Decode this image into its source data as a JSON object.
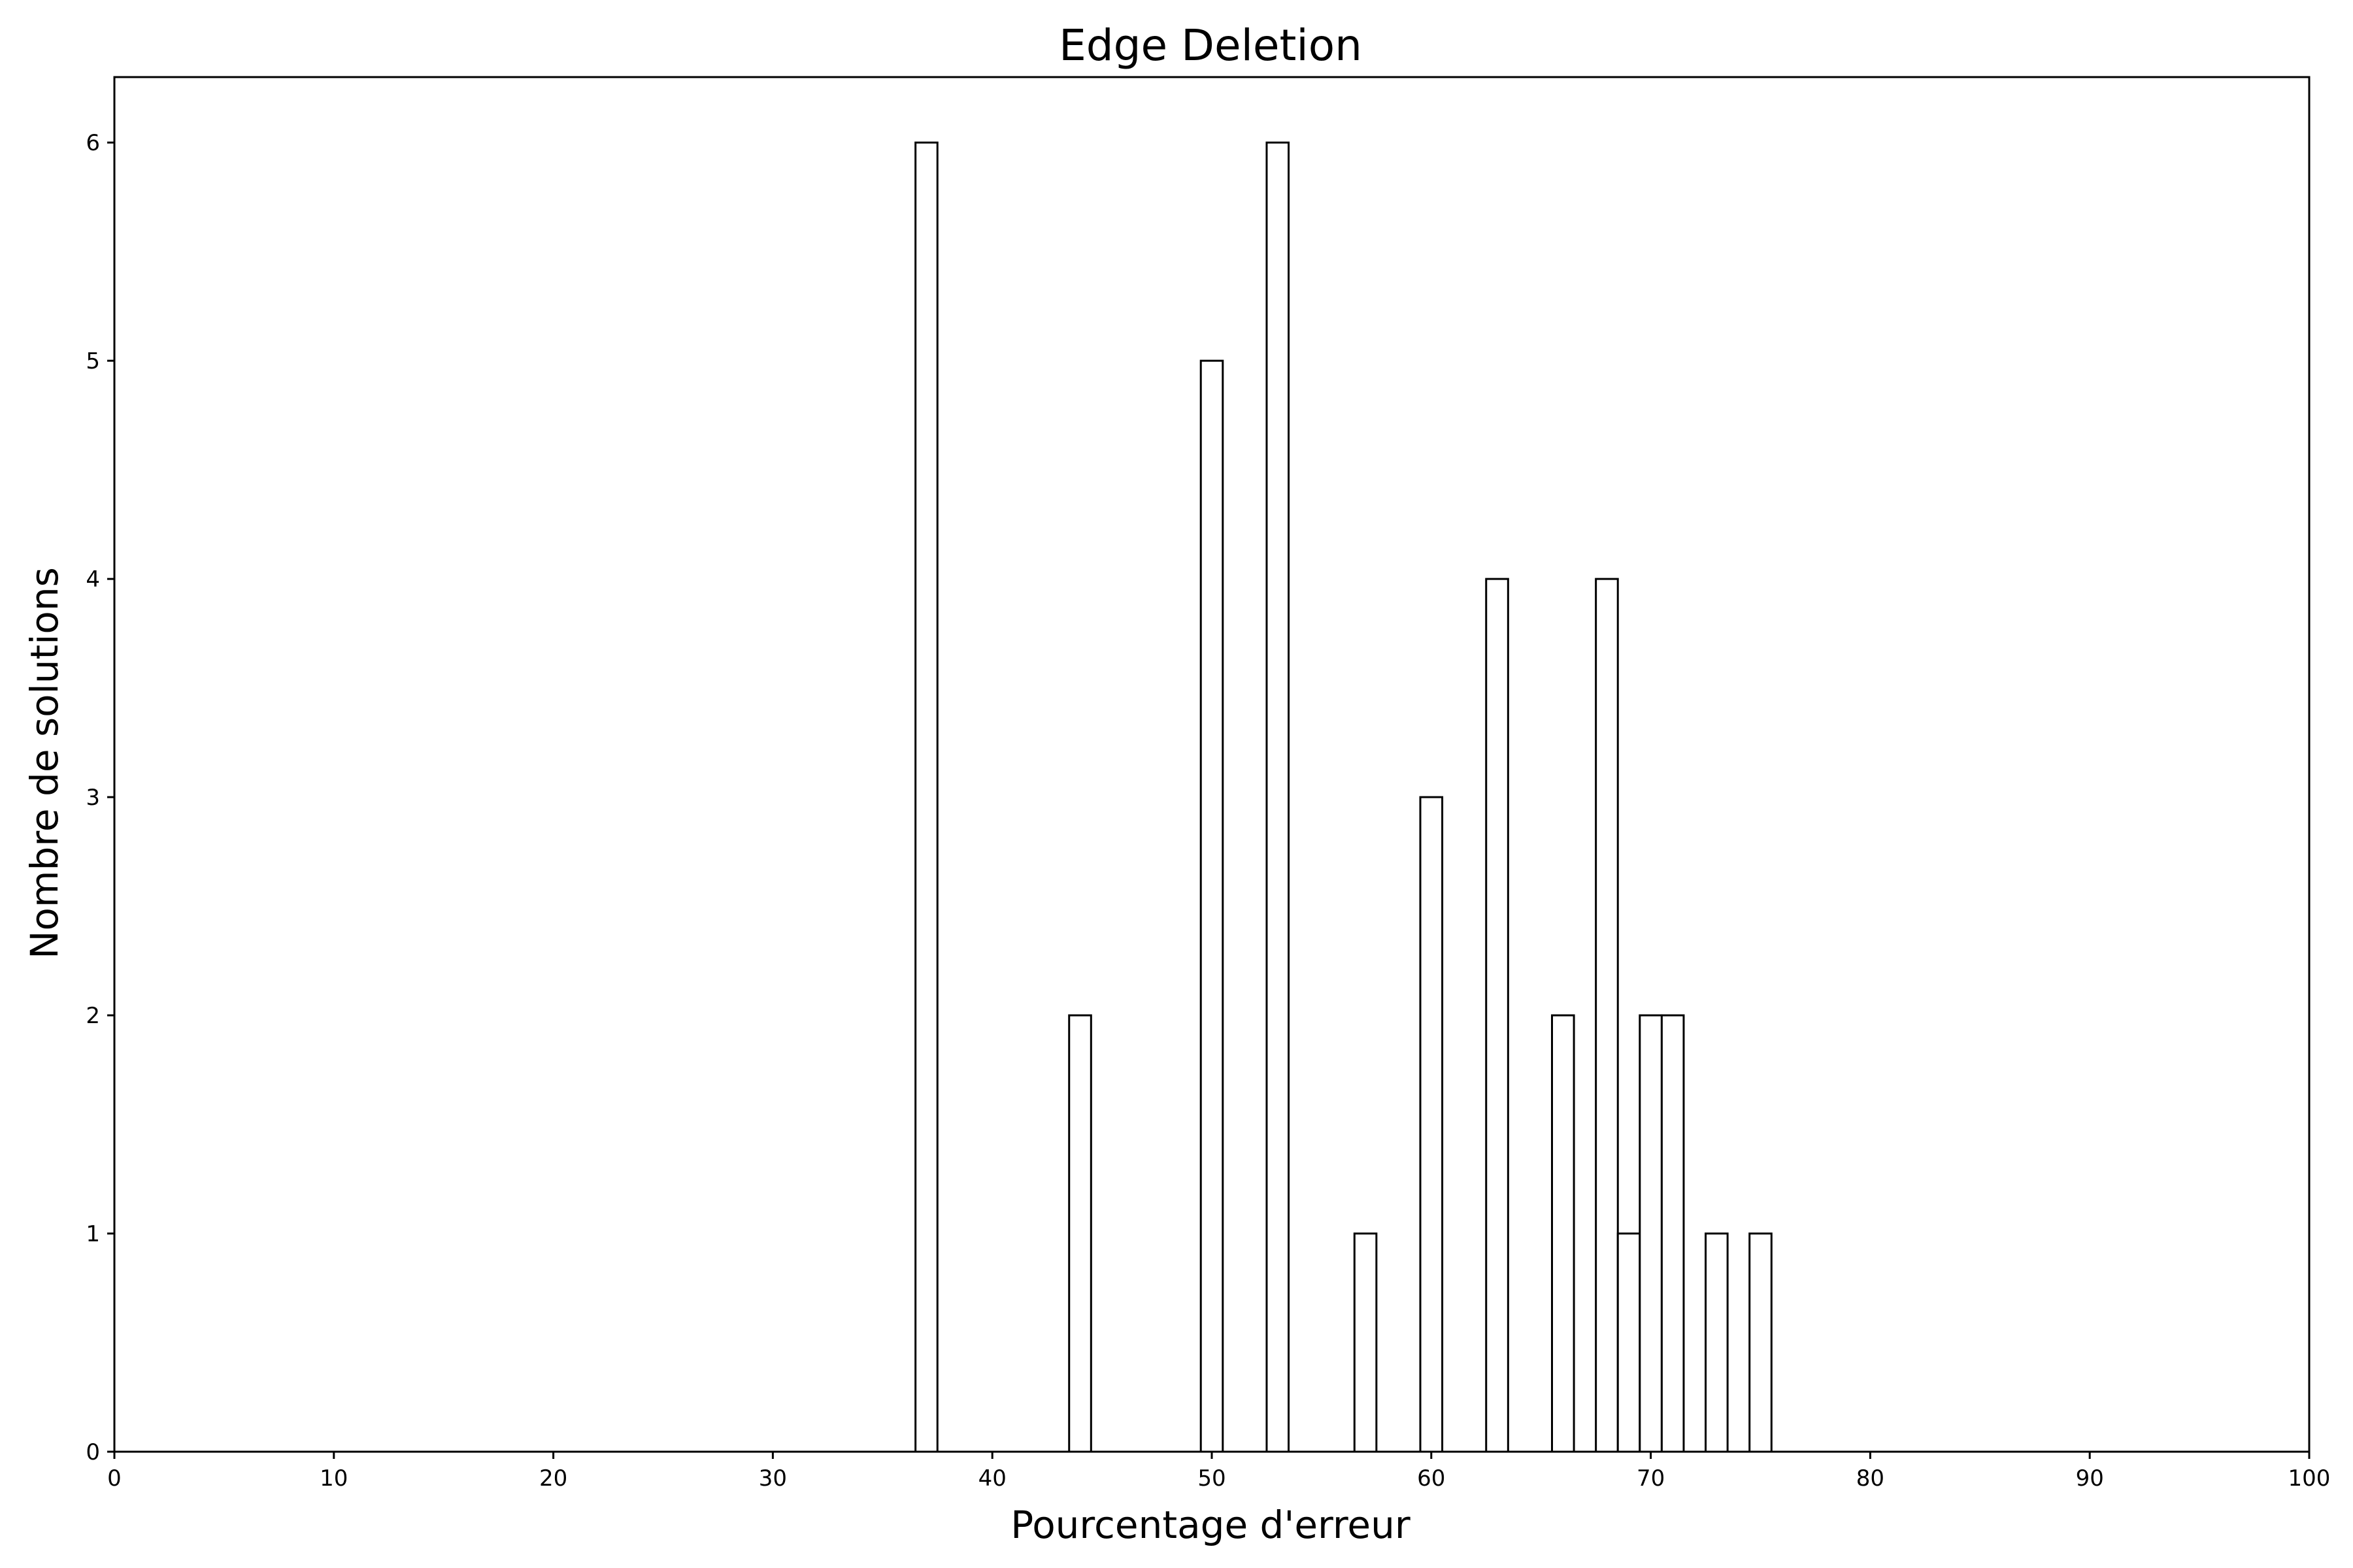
{
  "chart_data": {
    "type": "bar",
    "title": "Edge Deletion",
    "xlabel": "Pourcentage d'erreur",
    "ylabel": "Nombre de solutions",
    "xlim": [
      0,
      100
    ],
    "ylim": [
      0,
      6.3
    ],
    "xticks": [
      0,
      10,
      20,
      30,
      40,
      50,
      60,
      70,
      80,
      90,
      100
    ],
    "yticks": [
      0,
      1,
      2,
      3,
      4,
      5,
      6
    ],
    "bar_width": 1.0,
    "bar_fill": "#ffffff",
    "bar_edge": "#000000",
    "grid": false,
    "bars": [
      {
        "x": 37.0,
        "value": 6
      },
      {
        "x": 44.0,
        "value": 2
      },
      {
        "x": 50.0,
        "value": 5
      },
      {
        "x": 53.0,
        "value": 6
      },
      {
        "x": 57.0,
        "value": 1
      },
      {
        "x": 60.0,
        "value": 3
      },
      {
        "x": 63.0,
        "value": 4
      },
      {
        "x": 66.0,
        "value": 2
      },
      {
        "x": 68.0,
        "value": 4
      },
      {
        "x": 69.0,
        "value": 1
      },
      {
        "x": 70.0,
        "value": 2
      },
      {
        "x": 71.0,
        "value": 2
      },
      {
        "x": 73.0,
        "value": 1
      },
      {
        "x": 75.0,
        "value": 1
      }
    ]
  }
}
